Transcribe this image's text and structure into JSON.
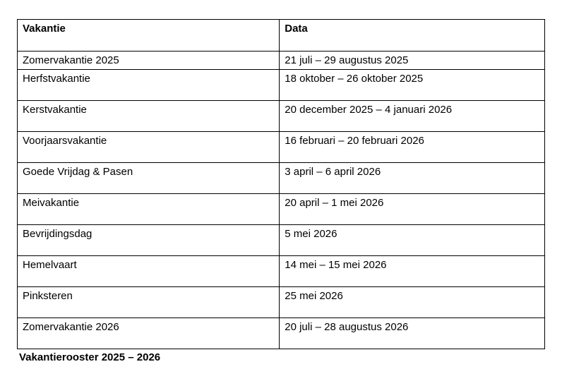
{
  "table": {
    "headers": [
      "Vakantie",
      "Data"
    ],
    "rows": [
      {
        "vakantie": "Zomervakantie 2025",
        "data": "21 juli – 29 augustus 2025"
      },
      {
        "vakantie": "Herfstvakantie",
        "data": "18 oktober – 26 oktober 2025"
      },
      {
        "vakantie": "Kerstvakantie",
        "data": "20 december 2025 – 4 januari 2026"
      },
      {
        "vakantie": "Voorjaarsvakantie",
        "data": "16 februari – 20 februari 2026"
      },
      {
        "vakantie": "Goede Vrijdag & Pasen",
        "data": "3 april – 6 april 2026"
      },
      {
        "vakantie": "Meivakantie",
        "data": "20 april – 1 mei 2026"
      },
      {
        "vakantie": "Bevrijdingsdag",
        "data": "5 mei 2026"
      },
      {
        "vakantie": "Hemelvaart",
        "data": "14 mei – 15 mei 2026"
      },
      {
        "vakantie": "Pinksteren",
        "data": "25 mei 2026"
      },
      {
        "vakantie": "Zomervakantie 2026",
        "data": "20 juli – 28 augustus 2026"
      }
    ]
  },
  "caption": "Vakantierooster 2025 – 2026"
}
